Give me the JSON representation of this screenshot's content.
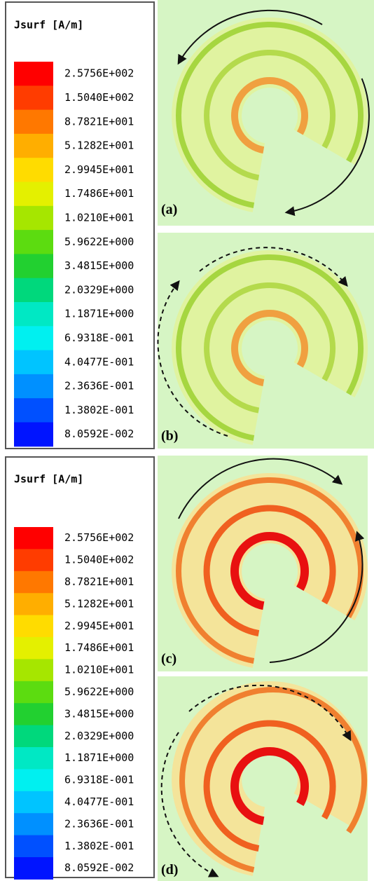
{
  "legends": [
    {
      "title": "Jsurf [A/m]",
      "labels": [
        "2.5756E+002",
        "1.5040E+002",
        "8.7821E+001",
        "5.1282E+001",
        "2.9945E+001",
        "1.7486E+001",
        "1.0210E+001",
        "5.9622E+000",
        "3.4815E+000",
        "2.0329E+000",
        "1.1871E+000",
        "6.9318E-001",
        "4.0477E-001",
        "2.3636E-001",
        "1.3802E-001",
        "8.0592E-002"
      ],
      "colors": [
        "#ff0000",
        "#ff3c00",
        "#ff7800",
        "#ffae00",
        "#ffdc00",
        "#e4f000",
        "#a6e600",
        "#5cdc10",
        "#22d030",
        "#00d87c",
        "#00e8c4",
        "#00f0f0",
        "#00c4ff",
        "#0090ff",
        "#0050ff",
        "#0014ff"
      ]
    },
    {
      "title": "Jsurf [A/m]",
      "labels": [
        "2.5756E+002",
        "1.5040E+002",
        "8.7821E+001",
        "5.1282E+001",
        "2.9945E+001",
        "1.7486E+001",
        "1.0210E+001",
        "5.9622E+000",
        "3.4815E+000",
        "2.0329E+000",
        "1.1871E+000",
        "6.9318E-001",
        "4.0477E-001",
        "2.3636E-001",
        "1.3802E-001",
        "8.0592E-002"
      ],
      "colors": [
        "#ff0000",
        "#ff3c00",
        "#ff7800",
        "#ffae00",
        "#ffdc00",
        "#e4f000",
        "#a6e600",
        "#5cdc10",
        "#22d030",
        "#00d87c",
        "#00e8c4",
        "#00f0f0",
        "#00c4ff",
        "#0090ff",
        "#0050ff",
        "#0014ff"
      ]
    }
  ],
  "panels": [
    {
      "label": "(a)"
    },
    {
      "label": "(b)"
    },
    {
      "label": "(c)"
    },
    {
      "label": "(d)"
    }
  ]
}
